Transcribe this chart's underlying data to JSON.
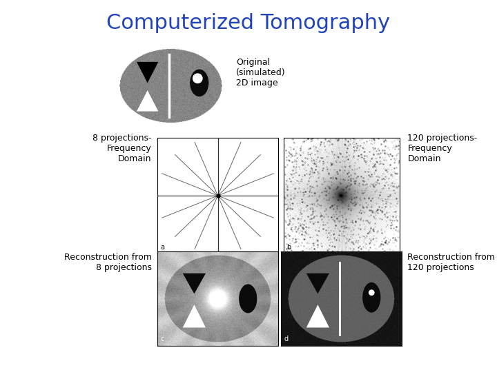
{
  "title": "Computerized Tomography",
  "title_color": "#2244bb",
  "title_fontsize": 22,
  "bg_color": "#ffffff",
  "label_original": "Original\n(simulated)\n2D image",
  "label_8proj_freq": "8 projections-\nFrequency\nDomain",
  "label_120proj_freq": "120 projections-\nFrequency\nDomain",
  "label_recon8": "Reconstruction from\n8 projections",
  "label_recon120": "Reconstruction from\n120 projections",
  "panel_labels": [
    "a",
    "b",
    "c",
    "d"
  ],
  "n_projections_8": 8,
  "n_projections_120": 120,
  "phantom_outer_color": "#888888",
  "phantom_bg_color": "#aaaaaa",
  "text_fontsize": 9,
  "panel_label_fontsize": 7
}
